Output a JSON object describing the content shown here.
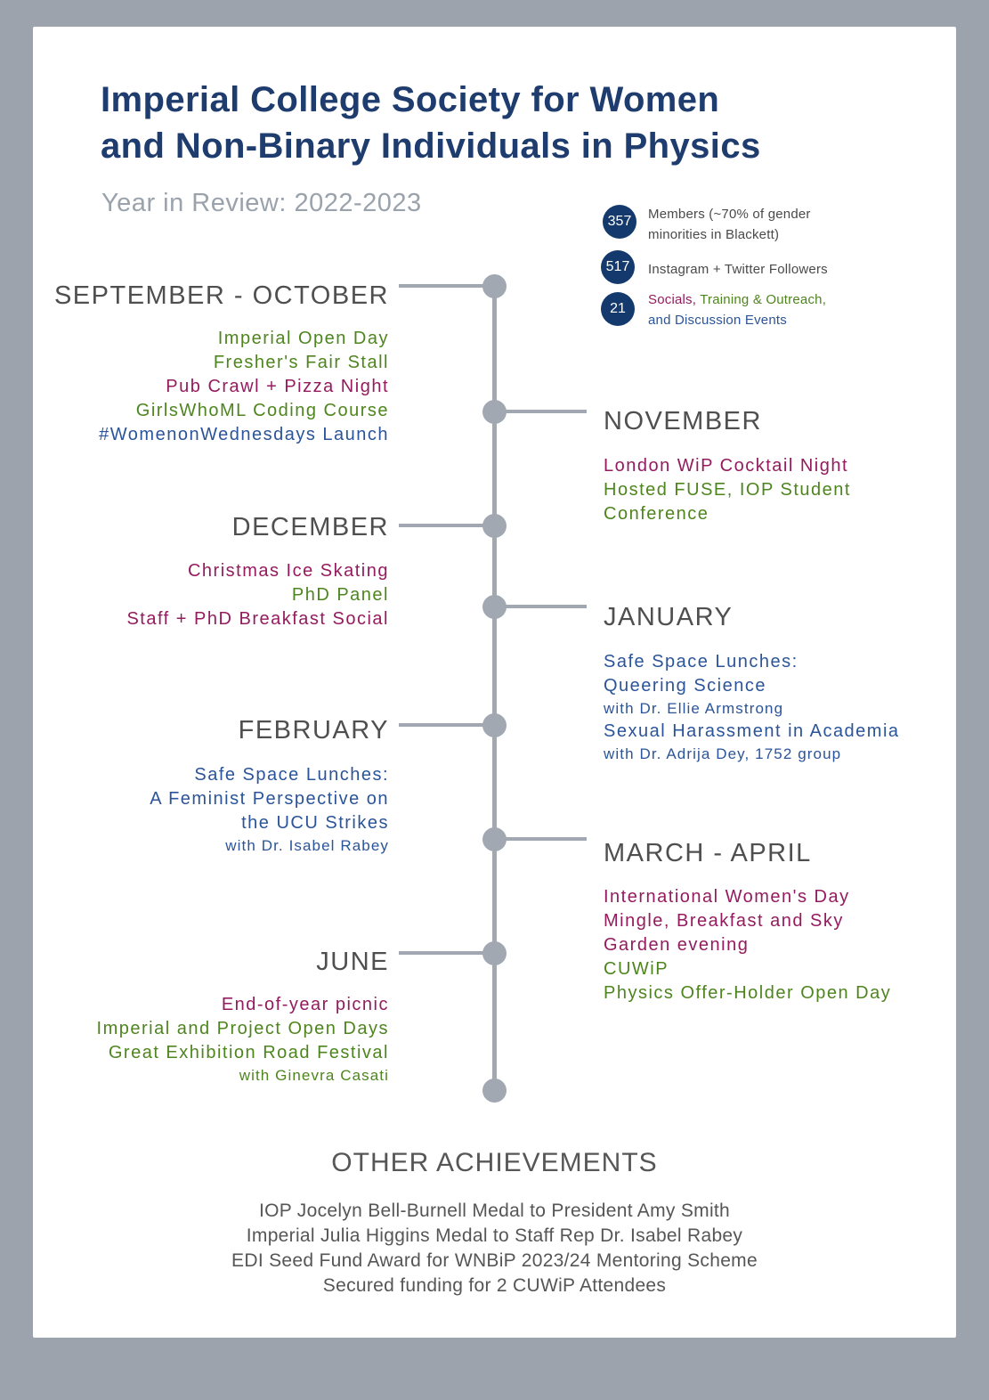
{
  "palette": {
    "navy": "#1e3c6e",
    "badge": "#143a6d",
    "blue": "#2b5499",
    "green": "#4e851e",
    "maroon": "#941b5e",
    "grayhead": "#4f4f4f",
    "graystat": "#4a4a4a",
    "graysub": "#9aa2ac",
    "grayach": "#565656",
    "line": "#a2a8b1",
    "bg": "#9da3ad"
  },
  "header": {
    "title_line1": "Imperial College Society for Women",
    "title_line2": "and Non-Binary Individuals in Physics",
    "subtitle": "Year in Review: 2022-2023"
  },
  "stats": [
    {
      "value": "357",
      "line1": "Members (~70% of gender",
      "line2": "minorities in Blackett)"
    },
    {
      "value": "517",
      "line1": "Instagram + Twitter Followers"
    },
    {
      "value": "21",
      "part1": "Socials,",
      "part2": " Training & Outreach,",
      "line2": "and Discussion Events"
    }
  ],
  "timeline": [
    {
      "month": "SEPTEMBER - OCTOBER",
      "side": "left",
      "events": [
        {
          "text": "Imperial Open Day",
          "color": "green"
        },
        {
          "text": "Fresher's Fair Stall",
          "color": "green"
        },
        {
          "text": "Pub Crawl + Pizza Night",
          "color": "maroon"
        },
        {
          "text": "GirlsWhoML Coding Course",
          "color": "green"
        },
        {
          "text": "#WomenonWednesdays Launch",
          "color": "blue"
        }
      ]
    },
    {
      "month": "NOVEMBER",
      "side": "right",
      "events": [
        {
          "text": "London WiP Cocktail Night",
          "color": "maroon"
        },
        {
          "text": "Hosted FUSE, IOP Student",
          "color": "green"
        },
        {
          "text": "Conference",
          "color": "green"
        }
      ]
    },
    {
      "month": "DECEMBER",
      "side": "left",
      "events": [
        {
          "text": "Christmas Ice Skating",
          "color": "maroon"
        },
        {
          "text": "PhD Panel",
          "color": "green"
        },
        {
          "text": "Staff + PhD Breakfast Social",
          "color": "maroon"
        }
      ]
    },
    {
      "month": "JANUARY",
      "side": "right",
      "events": [
        {
          "text": "Safe Space Lunches:",
          "color": "blue"
        },
        {
          "text": "Queering Science",
          "color": "blue"
        },
        {
          "text": "with Dr. Ellie Armstrong",
          "color": "blue"
        },
        {
          "text": "Sexual Harassment in Academia",
          "color": "blue"
        },
        {
          "text": "with Dr. Adrija Dey, 1752 group",
          "color": "blue"
        }
      ]
    },
    {
      "month": "FEBRUARY",
      "side": "left",
      "events": [
        {
          "text": "Safe Space Lunches:",
          "color": "blue"
        },
        {
          "text": "A Feminist Perspective on",
          "color": "blue"
        },
        {
          "text": "the UCU Strikes",
          "color": "blue"
        },
        {
          "text": "with Dr. Isabel Rabey",
          "color": "blue"
        }
      ]
    },
    {
      "month": "MARCH - APRIL",
      "side": "right",
      "events": [
        {
          "text": "International Women's Day",
          "color": "maroon"
        },
        {
          "text": "Mingle, Breakfast and Sky",
          "color": "maroon"
        },
        {
          "text": "Garden evening",
          "color": "maroon"
        },
        {
          "text": "CUWiP",
          "color": "green"
        },
        {
          "text": "Physics Offer-Holder Open Day",
          "color": "green"
        }
      ]
    },
    {
      "month": "JUNE",
      "side": "left",
      "events": [
        {
          "text": "End-of-year picnic",
          "color": "maroon"
        },
        {
          "text": "Imperial and Project Open Days",
          "color": "green"
        },
        {
          "text": "Great Exhibition Road Festival",
          "color": "green"
        },
        {
          "text": "with Ginevra Casati",
          "color": "green"
        }
      ]
    }
  ],
  "achievements": {
    "heading": "OTHER ACHIEVEMENTS",
    "items": [
      "IOP Jocelyn Bell-Burnell Medal to President Amy Smith",
      "Imperial Julia Higgins Medal to Staff Rep Dr. Isabel Rabey",
      "EDI Seed Fund Award for WNBiP 2023/24 Mentoring Scheme",
      "Secured funding for 2 CUWiP Attendees"
    ]
  }
}
